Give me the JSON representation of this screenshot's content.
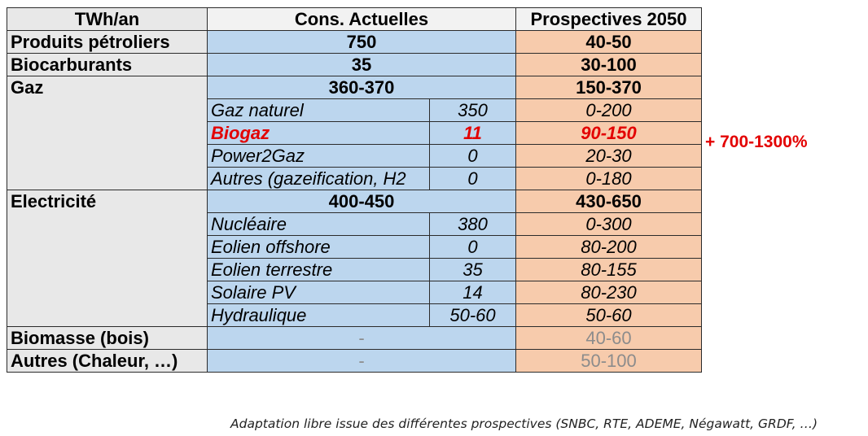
{
  "header": {
    "unit": "TWh/an",
    "current": "Cons. Actuelles",
    "prospective": "Prospectives 2050"
  },
  "rows": {
    "petrole": {
      "label": "Produits pétroliers",
      "current": "750",
      "prospective": "40-50"
    },
    "biocarb": {
      "label": "Biocarburants",
      "current": "35",
      "prospective": "30-100"
    },
    "gaz": {
      "label": "Gaz",
      "current": "360-370",
      "prospective": "150-370",
      "subs": [
        {
          "label": "Gaz naturel",
          "current": "350",
          "prospective": "0-200"
        },
        {
          "label": "Biogaz",
          "current": "11",
          "prospective": "90-150"
        },
        {
          "label": "Power2Gaz",
          "current": "0",
          "prospective": "20-30"
        },
        {
          "label": "Autres (gazeification, H2",
          "current": "0",
          "prospective": "0-180"
        }
      ]
    },
    "elec": {
      "label": "Electricité",
      "current": "400-450",
      "prospective": "430-650",
      "subs": [
        {
          "label": "Nucléaire",
          "current": "380",
          "prospective": "0-300"
        },
        {
          "label": "Eolien offshore",
          "current": "0",
          "prospective": "80-200"
        },
        {
          "label": "Eolien terrestre",
          "current": "35",
          "prospective": "80-155"
        },
        {
          "label": "Solaire PV",
          "current": "14",
          "prospective": "80-230"
        },
        {
          "label": "Hydraulique",
          "current": "50-60",
          "prospective": "50-60"
        }
      ]
    },
    "biomasse": {
      "label": "Biomasse (bois)",
      "current": "-",
      "prospective": "40-60"
    },
    "autres": {
      "label": "Autres (Chaleur, …)",
      "current": "-",
      "prospective": "50-100"
    }
  },
  "annotation": "+ 700-1300%",
  "footnote": "Adaptation libre issue des différentes prospectives (SNBC, RTE, ADEME, Négawatt, GRDF, …)",
  "colors": {
    "current_bg": "#bcd6ee",
    "prospective_bg": "#f7cbac",
    "label_bg": "#e8e8e8",
    "highlight": "#e30000"
  }
}
